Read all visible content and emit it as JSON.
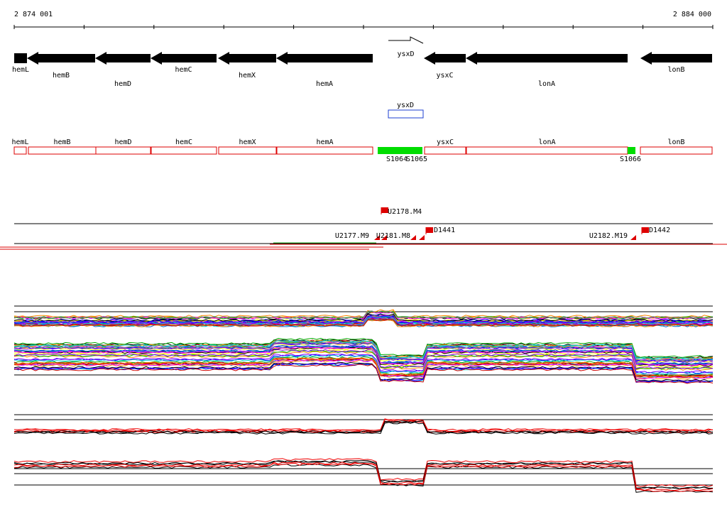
{
  "ruler": {
    "start": "2 874 001",
    "end": "2 884 000"
  },
  "genes": [
    "hemL",
    "hemB",
    "hemD",
    "hemC",
    "hemX",
    "hemA",
    "ysxD",
    "ysxC",
    "lonA",
    "lonB"
  ],
  "predicted": {
    "label": "ysxD"
  },
  "features": [
    "hemL",
    "hemB",
    "hemD",
    "hemC",
    "hemX",
    "hemA",
    "ysxC",
    "lonA",
    "lonB"
  ],
  "segments": [
    "S1064",
    "S1065",
    "S1066"
  ],
  "probes": [
    "U2178.M4",
    "D1441",
    "U2177.M9",
    "U2181.M8",
    "U2182.M19",
    "D1442"
  ]
}
